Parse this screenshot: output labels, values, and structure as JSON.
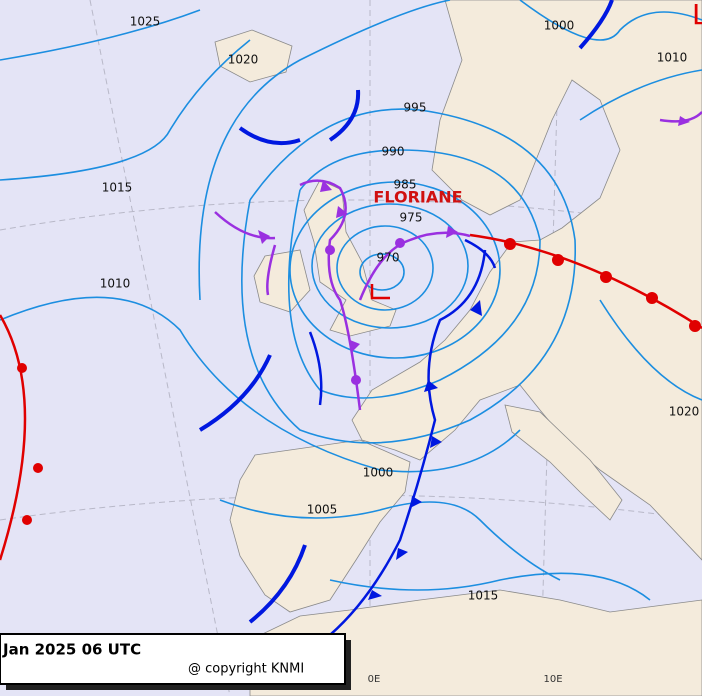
{
  "map": {
    "storm_name": "FLORIANE",
    "low_marker": "L",
    "isobar_labels": [
      "1025",
      "1020",
      "1015",
      "1010",
      "995",
      "990",
      "985",
      "975",
      "970",
      "1000",
      "1010",
      "1000",
      "1005",
      "1015",
      "1020"
    ],
    "longitude_labels": [
      "0E",
      "10E"
    ]
  },
  "caption": {
    "date": "Jan 2025 06 UTC",
    "copyright": "@ copyright KNMI"
  }
}
